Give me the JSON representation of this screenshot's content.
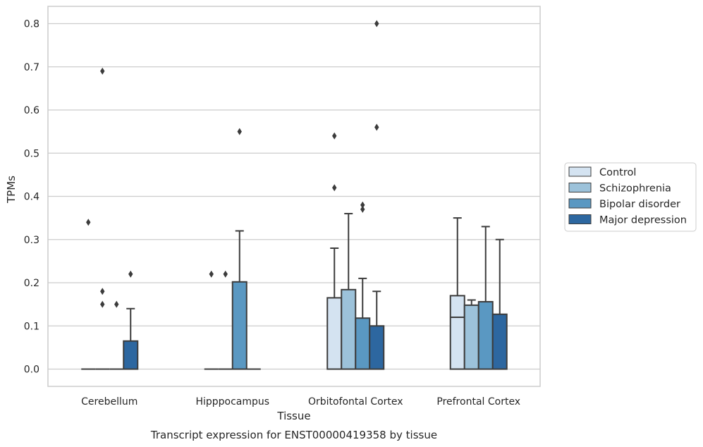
{
  "chart_data": {
    "type": "boxplot",
    "caption": "Transcript expression for ENST00000419358 by tissue",
    "xlabel": "Tissue",
    "ylabel": "TPMs",
    "ylim": [
      -0.04,
      0.84
    ],
    "yticks": [
      "0.0",
      "0.1",
      "0.2",
      "0.3",
      "0.4",
      "0.5",
      "0.6",
      "0.7",
      "0.8"
    ],
    "grid": true,
    "legend_position": "right",
    "categories": [
      "Cerebellum",
      "Hipppocampus",
      "Orbitofontal Cortex",
      "Prefrontal Cortex"
    ],
    "series": [
      {
        "name": "Control",
        "color": "#d4e3f1",
        "boxes": [
          {
            "q1": 0,
            "median": 0,
            "q3": 0,
            "whisker_low": 0,
            "whisker_high": 0,
            "outliers": [
              0.34
            ]
          },
          {
            "q1": 0,
            "median": 0,
            "q3": 0,
            "whisker_low": 0,
            "whisker_high": 0,
            "outliers": [
              0.22
            ]
          },
          {
            "q1": 0,
            "median": 0,
            "q3": 0.165,
            "whisker_low": 0,
            "whisker_high": 0.28,
            "outliers": [
              0.42,
              0.54
            ]
          },
          {
            "q1": 0,
            "median": 0.12,
            "q3": 0.17,
            "whisker_low": 0,
            "whisker_high": 0.35,
            "outliers": []
          }
        ]
      },
      {
        "name": "Schizophrenia",
        "color": "#9cc2da",
        "boxes": [
          {
            "q1": 0,
            "median": 0,
            "q3": 0,
            "whisker_low": 0,
            "whisker_high": 0,
            "outliers": [
              0.69,
              0.18,
              0.15
            ]
          },
          {
            "q1": 0,
            "median": 0,
            "q3": 0,
            "whisker_low": 0,
            "whisker_high": 0,
            "outliers": [
              0.22
            ]
          },
          {
            "q1": 0,
            "median": 0,
            "q3": 0.184,
            "whisker_low": 0,
            "whisker_high": 0.36,
            "outliers": []
          },
          {
            "q1": 0,
            "median": 0,
            "q3": 0.148,
            "whisker_low": 0,
            "whisker_high": 0.16,
            "outliers": []
          }
        ]
      },
      {
        "name": "Bipolar disorder",
        "color": "#5a98c2",
        "boxes": [
          {
            "q1": 0,
            "median": 0,
            "q3": 0,
            "whisker_low": 0,
            "whisker_high": 0,
            "outliers": [
              0.15
            ]
          },
          {
            "q1": 0,
            "median": 0,
            "q3": 0.202,
            "whisker_low": 0,
            "whisker_high": 0.32,
            "outliers": [
              0.55
            ]
          },
          {
            "q1": 0,
            "median": 0,
            "q3": 0.118,
            "whisker_low": 0,
            "whisker_high": 0.21,
            "outliers": [
              0.38,
              0.37
            ]
          },
          {
            "q1": 0,
            "median": 0,
            "q3": 0.156,
            "whisker_low": 0,
            "whisker_high": 0.33,
            "outliers": []
          }
        ]
      },
      {
        "name": "Major depression",
        "color": "#2d67a0",
        "boxes": [
          {
            "q1": 0,
            "median": 0,
            "q3": 0.065,
            "whisker_low": 0,
            "whisker_high": 0.14,
            "outliers": [
              0.22
            ]
          },
          {
            "q1": 0,
            "median": 0,
            "q3": 0,
            "whisker_low": 0,
            "whisker_high": 0,
            "outliers": []
          },
          {
            "q1": 0,
            "median": 0,
            "q3": 0.1,
            "whisker_low": 0,
            "whisker_high": 0.18,
            "outliers": [
              0.8,
              0.56
            ]
          },
          {
            "q1": 0,
            "median": 0,
            "q3": 0.127,
            "whisker_low": 0,
            "whisker_high": 0.3,
            "outliers": []
          }
        ]
      }
    ]
  }
}
